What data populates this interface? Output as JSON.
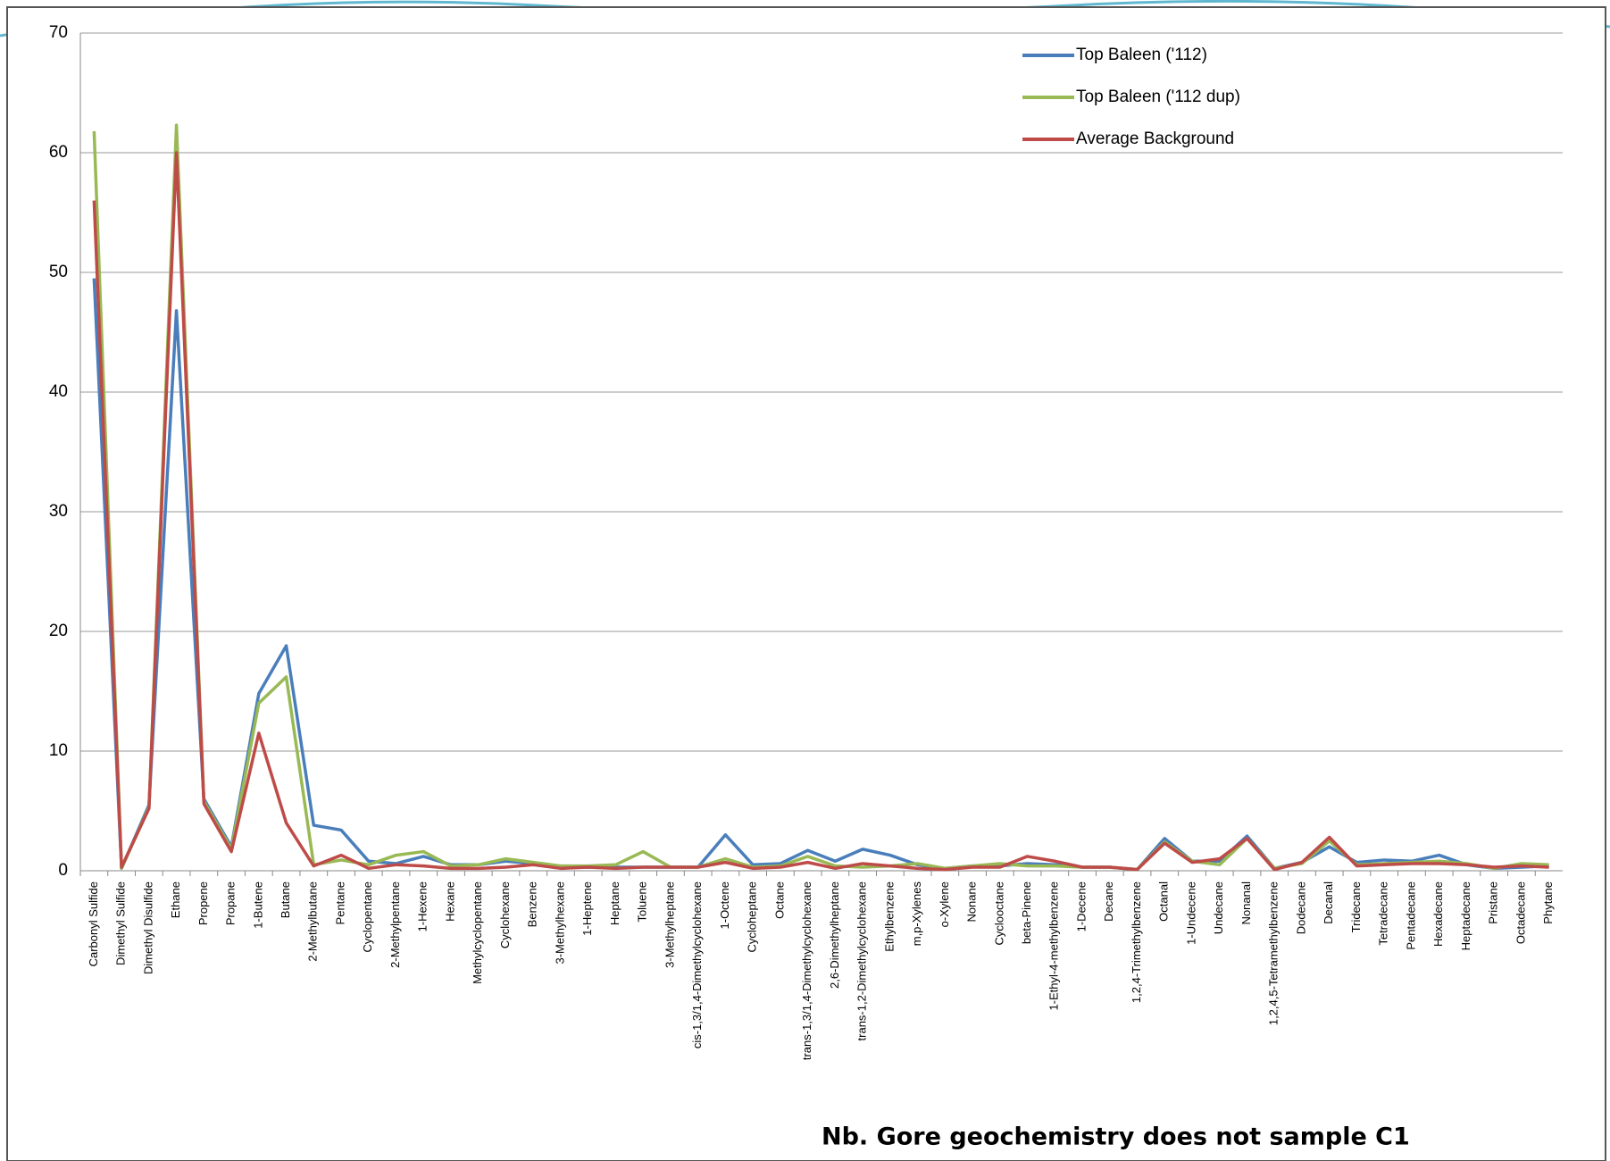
{
  "chart_data": {
    "type": "line",
    "categories": [
      "Carbonyl Sulfide",
      "Dimethyl Sulfide",
      "Dimethyl Disulfide",
      "Ethane",
      "Propene",
      "Propane",
      "1-Butene",
      "Butane",
      "2-Methylbutane",
      "Pentane",
      "Cyclopentane",
      "2-Methylpentane",
      "1-Hexene",
      "Hexane",
      "Methylcyclopentane",
      "Cyclohexane",
      "Benzene",
      "3-Methylhexane",
      "1-Heptene",
      "Heptane",
      "Toluene",
      "3-Methylheptane",
      "cis-1,3/1,4-Dimethylcyclohexane",
      "1-Octene",
      "Cycloheptane",
      "Octane",
      "trans-1,3/1,4-Dimethylcyclohexane",
      "2,6-Dimethylheptane",
      "trans-1,2-Dimethylcyclohexane",
      "Ethylbenzene",
      "m,p-Xylenes",
      "o-Xylene",
      "Nonane",
      "Cyclooctane",
      "beta-Pinene",
      "1-Ethyl-4-methylbenzene",
      "1-Decene",
      "Decane",
      "1,2,4-Trimethylbenzene",
      "Octanal",
      "1-Undecene",
      "Undecane",
      "Nonanal",
      "1,2,4,5-Tetramethylbenzene",
      "Dodecane",
      "Decanal",
      "Tridecane",
      "Tetradecane",
      "Pentadecane",
      "Hexadecane",
      "Heptadecane",
      "Pristane",
      "Octadecane",
      "Phytane"
    ],
    "series": [
      {
        "name": "Top Baleen ('112)",
        "color": "#4a7ebb",
        "values": [
          49.5,
          0.2,
          5.5,
          46.8,
          6.0,
          2.0,
          14.8,
          18.8,
          3.8,
          3.4,
          0.8,
          0.6,
          1.2,
          0.5,
          0.5,
          0.8,
          0.6,
          0.3,
          0.3,
          0.3,
          0.3,
          0.3,
          0.3,
          3.0,
          0.5,
          0.6,
          1.7,
          0.8,
          1.8,
          1.3,
          0.5,
          0.2,
          0.4,
          0.4,
          0.6,
          0.5,
          0.3,
          0.3,
          0.1,
          2.7,
          0.8,
          0.8,
          2.9,
          0.2,
          0.7,
          2.0,
          0.7,
          0.9,
          0.8,
          1.3,
          0.5,
          0.2,
          0.3,
          0.4
        ]
      },
      {
        "name": "Top Baleen ('112 dup)",
        "color": "#98b954",
        "values": [
          61.8,
          0.2,
          5.3,
          62.3,
          5.8,
          1.8,
          14.0,
          16.2,
          0.5,
          0.9,
          0.5,
          1.3,
          1.6,
          0.4,
          0.5,
          1.0,
          0.7,
          0.4,
          0.4,
          0.5,
          1.6,
          0.3,
          0.3,
          1.0,
          0.3,
          0.4,
          1.2,
          0.4,
          0.3,
          0.4,
          0.6,
          0.2,
          0.4,
          0.6,
          0.4,
          0.4,
          0.3,
          0.3,
          0.1,
          2.4,
          0.8,
          0.5,
          2.7,
          0.2,
          0.6,
          2.5,
          0.5,
          0.6,
          0.7,
          0.8,
          0.6,
          0.2,
          0.6,
          0.5
        ]
      },
      {
        "name": "Average Background",
        "color": "#be4b48",
        "values": [
          56.0,
          0.3,
          5.2,
          60.0,
          5.6,
          1.6,
          11.5,
          4.0,
          0.4,
          1.3,
          0.2,
          0.5,
          0.4,
          0.2,
          0.2,
          0.3,
          0.5,
          0.2,
          0.3,
          0.2,
          0.3,
          0.3,
          0.3,
          0.7,
          0.2,
          0.3,
          0.7,
          0.2,
          0.6,
          0.4,
          0.2,
          0.1,
          0.3,
          0.3,
          1.2,
          0.8,
          0.3,
          0.3,
          0.1,
          2.3,
          0.7,
          1.0,
          2.7,
          0.1,
          0.7,
          2.8,
          0.4,
          0.5,
          0.6,
          0.6,
          0.5,
          0.3,
          0.4,
          0.3
        ]
      }
    ],
    "ylim": [
      0,
      70
    ],
    "yticks": [
      0,
      10,
      20,
      30,
      40,
      50,
      60,
      70
    ],
    "grid": true,
    "legend": "top-right",
    "annotation": "Nb. Gore geochemistry does not sample C1"
  }
}
